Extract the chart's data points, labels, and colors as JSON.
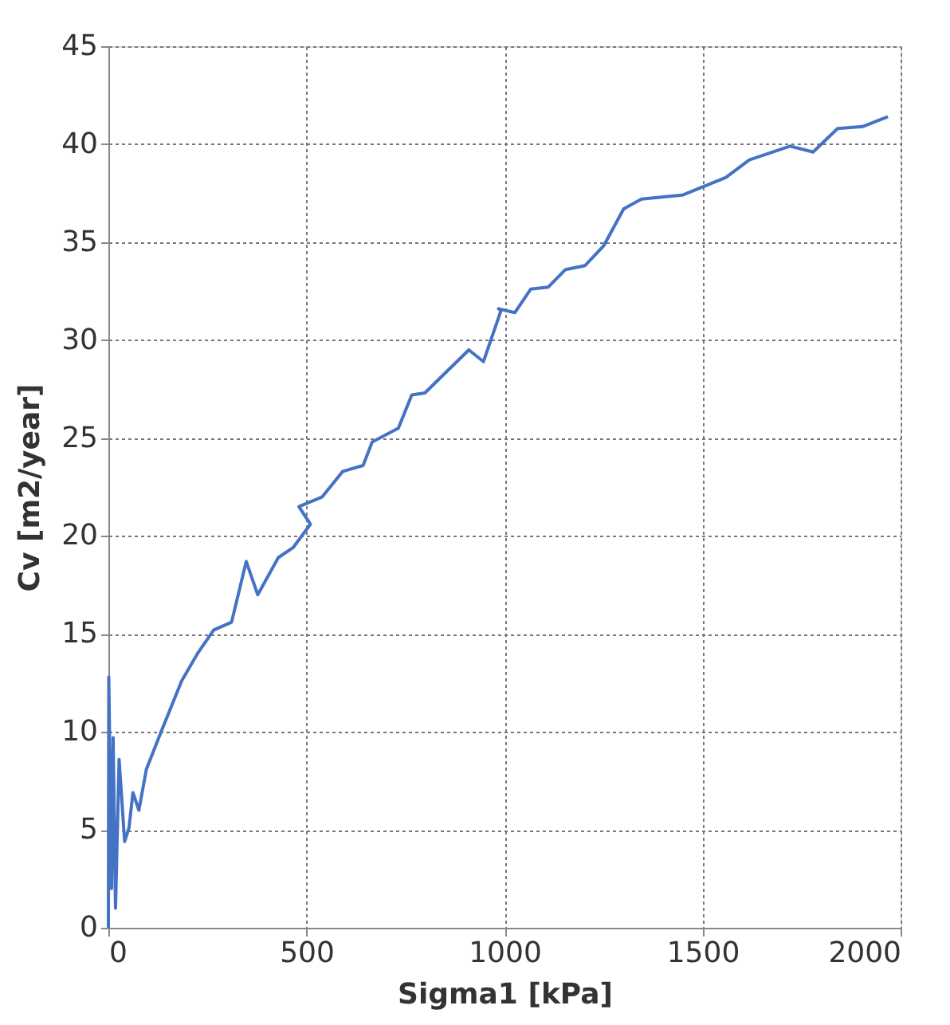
{
  "chart_data": {
    "type": "line",
    "xlabel": "Sigma1 [kPa]",
    "ylabel": "Cv [m2/year]",
    "x": [
      0,
      1,
      8,
      12,
      18,
      27,
      41,
      52,
      62,
      77,
      96,
      133,
      185,
      225,
      266,
      311,
      348,
      377,
      429,
      466,
      510,
      481,
      540,
      592,
      643,
      666,
      732,
      766,
      799,
      910,
      947,
      991,
      985,
      1026,
      1066,
      1110,
      1154,
      1203,
      1250,
      1301,
      1346,
      1449,
      1559,
      1618,
      1721,
      1779,
      1841,
      1904,
      1968
    ],
    "series": [
      {
        "color": "#4472c4",
        "values": [
          0,
          12.8,
          2,
          9.7,
          1,
          8.6,
          4.4,
          5.1,
          6.9,
          6,
          8.1,
          10,
          12.6,
          14,
          15.2,
          15.6,
          18.7,
          17,
          18.9,
          19.4,
          20.6,
          21.5,
          22,
          23.3,
          23.6,
          24.8,
          25.5,
          27.2,
          27.3,
          29.5,
          28.9,
          31.5,
          31.6,
          31.4,
          32.6,
          32.7,
          33.6,
          33.8,
          34.8,
          36.7,
          37.2,
          37.4,
          38.3,
          39.2,
          39.9,
          39.6,
          40.8,
          40.9,
          41.4
        ]
      }
    ],
    "xlim": [
      0,
      2000
    ],
    "xticks": [
      0,
      500,
      1000,
      1500,
      2000
    ],
    "ylim": [
      0,
      45
    ],
    "yticks": [
      0,
      5,
      10,
      15,
      20,
      25,
      30,
      35,
      40,
      45
    ],
    "grid": true,
    "marker": "none",
    "line_style": "solid"
  }
}
